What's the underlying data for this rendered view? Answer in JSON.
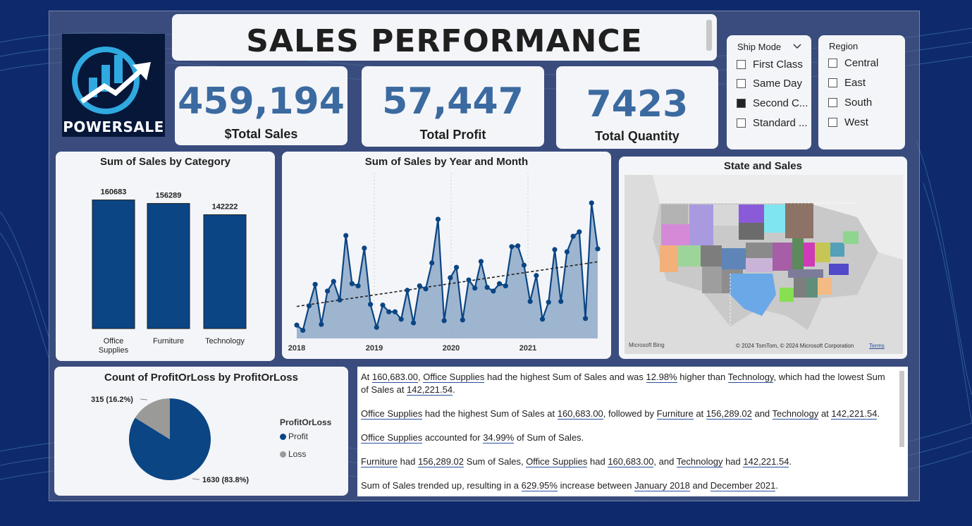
{
  "header": {
    "title": "SALES PERFORMANCE"
  },
  "logo": {
    "text": "POWERSALE"
  },
  "kpis": [
    {
      "value": "459,194",
      "label": "$Total Sales"
    },
    {
      "value": "57,447",
      "label": "Total Profit"
    },
    {
      "value": "7423",
      "label": "Total Quantity"
    }
  ],
  "ship_mode": {
    "title": "Ship Mode",
    "items": [
      {
        "label": "First Class",
        "checked": false
      },
      {
        "label": "Same Day",
        "checked": false
      },
      {
        "label": "Second C...",
        "checked": true
      },
      {
        "label": "Standard ...",
        "checked": false
      }
    ]
  },
  "region": {
    "title": "Region",
    "items": [
      {
        "label": "Central",
        "checked": false
      },
      {
        "label": "East",
        "checked": false
      },
      {
        "label": "South",
        "checked": false
      },
      {
        "label": "West",
        "checked": false
      }
    ]
  },
  "map": {
    "title": "State and Sales",
    "credit": "© 2024 TomTom, © 2024 Microsoft Corporation",
    "terms": "Terms",
    "bing": "Microsoft Bing"
  },
  "chart_data": [
    {
      "type": "bar",
      "title": "Sum of Sales by Category",
      "categories": [
        "Office Supplies",
        "Furniture",
        "Technology"
      ],
      "category_lines": [
        [
          "Office",
          "Supplies"
        ],
        [
          "Furniture"
        ],
        [
          "Technology"
        ]
      ],
      "values": [
        160683,
        156289,
        142222
      ],
      "color": "#0b4584",
      "ylim": [
        0,
        170000
      ]
    },
    {
      "type": "area",
      "title": "Sum of Sales by Year and Month",
      "x_ticks": [
        "2018",
        "2019",
        "2020",
        "2021"
      ],
      "color": "#0b4584",
      "fill": "#8ea9c9",
      "trendline": true,
      "ylim": [
        0,
        20000
      ],
      "values": [
        1800,
        1100,
        4400,
        7300,
        1900,
        6400,
        7700,
        5200,
        13900,
        7400,
        7100,
        12200,
        4600,
        1500,
        4500,
        3600,
        3600,
        2600,
        6500,
        2100,
        7100,
        6700,
        10200,
        16100,
        2400,
        8200,
        9600,
        2500,
        7900,
        6800,
        10400,
        6900,
        6400,
        7400,
        7100,
        12400,
        12500,
        9900,
        5000,
        8500,
        2600,
        4900,
        12000,
        5000,
        11700,
        13800,
        14400,
        2700,
        18300,
        12100
      ]
    },
    {
      "type": "pie",
      "title": "Count of ProfitOrLoss by ProfitOrLoss",
      "legend_title": "ProfitOrLoss",
      "series": [
        {
          "name": "Profit",
          "value": 1630,
          "label": "1630 (83.8%)",
          "color": "#0b4584"
        },
        {
          "name": "Loss",
          "value": 315,
          "label": "315 (16.2%)",
          "color": "#9a9a98"
        }
      ]
    }
  ],
  "narrative": [
    [
      {
        "t": "At "
      },
      {
        "t": "160,683.00",
        "u": true
      },
      {
        "t": ", "
      },
      {
        "t": "Office Supplies",
        "u": true
      },
      {
        "t": " had the highest Sum of Sales and was "
      },
      {
        "t": "12.98%",
        "u": true
      },
      {
        "t": " higher than "
      },
      {
        "t": "Technology",
        "u": true
      },
      {
        "t": ", which had the lowest Sum of Sales at "
      },
      {
        "t": "142,221.54",
        "u": true
      },
      {
        "t": "."
      }
    ],
    [
      {
        "t": "Office Supplies",
        "u": true
      },
      {
        "t": " had the highest Sum of Sales at "
      },
      {
        "t": "160,683.00",
        "u": true
      },
      {
        "t": ", followed by "
      },
      {
        "t": "Furniture",
        "u": true
      },
      {
        "t": " at "
      },
      {
        "t": "156,289.02",
        "u": true
      },
      {
        "t": " and "
      },
      {
        "t": "Technology",
        "u": true
      },
      {
        "t": " at "
      },
      {
        "t": "142,221.54",
        "u": true
      },
      {
        "t": "."
      }
    ],
    [
      {
        "t": "Office Supplies",
        "u": true
      },
      {
        "t": " accounted for "
      },
      {
        "t": "34.99%",
        "u": true
      },
      {
        "t": " of Sum of Sales."
      }
    ],
    [
      {
        "t": "Furniture",
        "u": true
      },
      {
        "t": " had "
      },
      {
        "t": "156,289.02",
        "u": true
      },
      {
        "t": " Sum of Sales, "
      },
      {
        "t": "Office Supplies",
        "u": true
      },
      {
        "t": " had "
      },
      {
        "t": "160,683.00",
        "u": true
      },
      {
        "t": ", and "
      },
      {
        "t": "Technology",
        "u": true
      },
      {
        "t": " had "
      },
      {
        "t": "142,221.54",
        "u": true
      },
      {
        "t": "."
      }
    ],
    [
      {
        "t": "Sum of Sales trended up, resulting in a "
      },
      {
        "t": "629.95%",
        "u": true
      },
      {
        "t": " increase between "
      },
      {
        "t": "January 2018",
        "u": true
      },
      {
        "t": " and "
      },
      {
        "t": "December 2021",
        "u": true
      },
      {
        "t": "."
      }
    ]
  ]
}
